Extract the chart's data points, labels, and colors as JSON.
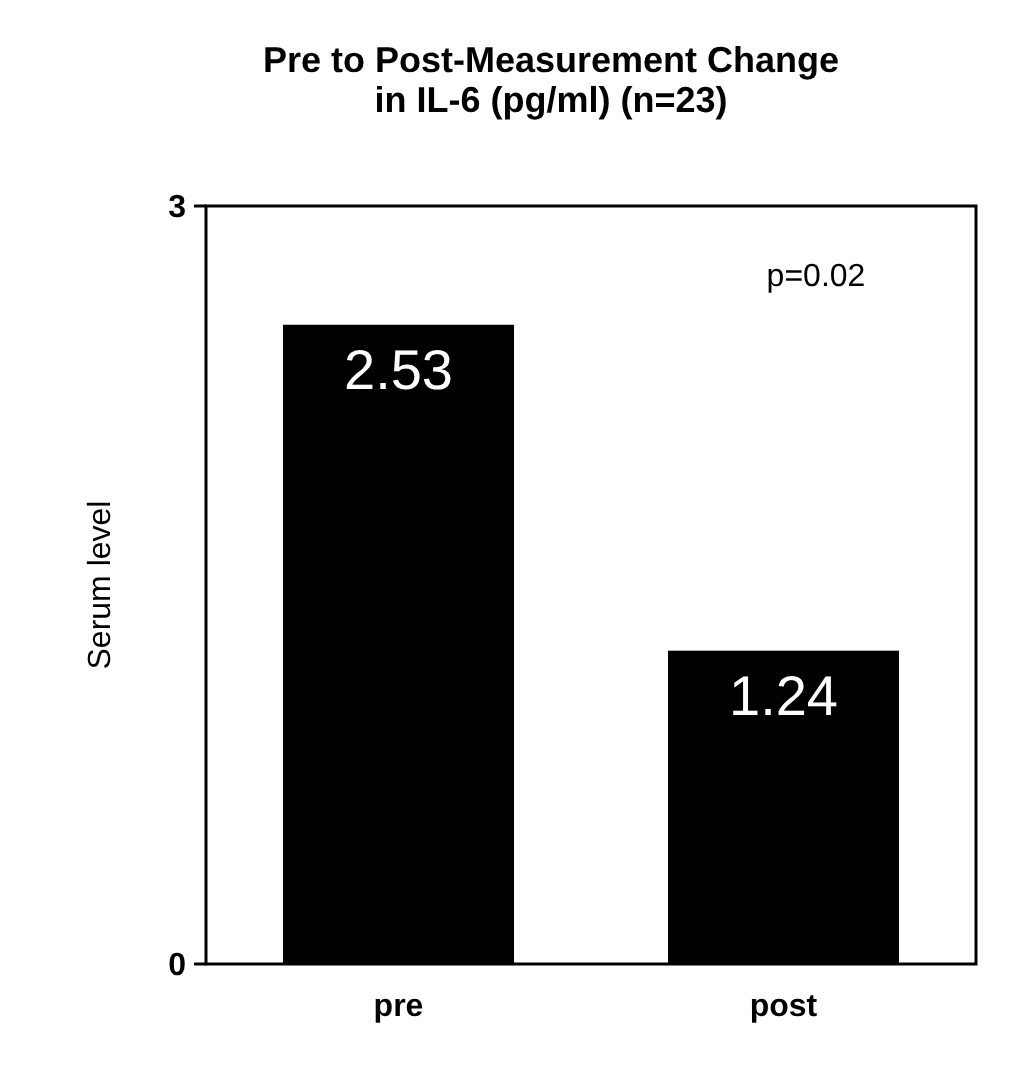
{
  "chart_data": {
    "type": "bar",
    "title": "Pre to Post-Measurement Change\nin IL-6 (pg/ml) (n=23)",
    "ylabel": "Serum level",
    "categories": [
      "pre",
      "post"
    ],
    "values": [
      2.53,
      1.24
    ],
    "color": "#000000",
    "ylim": [
      0,
      3
    ],
    "yticks": [
      0,
      3
    ],
    "data_labels": true,
    "annotations": [
      "p=0.02"
    ]
  }
}
